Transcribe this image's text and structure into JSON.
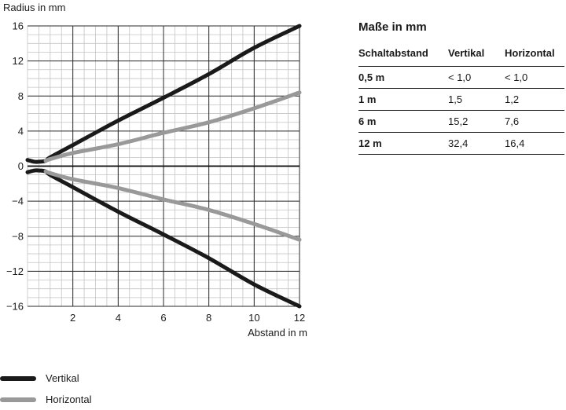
{
  "chart_data": {
    "type": "line",
    "ylabel": "Radius in mm",
    "xlabel": "Abstand in m",
    "xlim": [
      0,
      12
    ],
    "ylim": [
      -16,
      16
    ],
    "x_ticks": [
      2,
      4,
      6,
      8,
      10,
      12
    ],
    "y_ticks": [
      16,
      12,
      8,
      4,
      0,
      -4,
      -8,
      -12,
      -16
    ],
    "y_tick_labels": [
      "16",
      "12",
      "8",
      "4",
      "0",
      "−4",
      "−8",
      "−12",
      "−16"
    ],
    "grid": true,
    "series": [
      {
        "name": "Vertikal",
        "color": "#1a1a1a",
        "x": [
          0,
          0.3,
          0.5,
          0.8,
          1.0,
          2,
          4,
          6,
          8,
          10,
          12
        ],
        "y": [
          0.7,
          0.5,
          0.5,
          0.6,
          1.0,
          2.4,
          5.2,
          7.8,
          10.5,
          13.5,
          16.0
        ]
      },
      {
        "name": "Vertikal",
        "color": "#1a1a1a",
        "x": [
          0,
          0.3,
          0.5,
          0.8,
          1.0,
          2,
          4,
          6,
          8,
          10,
          12
        ],
        "y": [
          -0.7,
          -0.5,
          -0.5,
          -0.6,
          -1.0,
          -2.4,
          -5.2,
          -7.8,
          -10.5,
          -13.5,
          -16.0
        ]
      },
      {
        "name": "Horizontal",
        "color": "#999999",
        "x": [
          0.8,
          1.0,
          2,
          4,
          6,
          8,
          10,
          12
        ],
        "y": [
          0.6,
          0.8,
          1.5,
          2.5,
          3.8,
          5.0,
          6.6,
          8.4
        ]
      },
      {
        "name": "Horizontal",
        "color": "#999999",
        "x": [
          0.8,
          1.0,
          2,
          4,
          6,
          8,
          10,
          12
        ],
        "y": [
          -0.6,
          -0.8,
          -1.5,
          -2.5,
          -3.8,
          -5.0,
          -6.6,
          -8.4
        ]
      }
    ],
    "legend": [
      {
        "label": "Vertikal",
        "color": "#1a1a1a"
      },
      {
        "label": "Horizontal",
        "color": "#999999"
      }
    ],
    "legend_position": "bottom-left"
  },
  "table": {
    "title": "Maße in mm",
    "headers": [
      "Schaltabstand",
      "Vertikal",
      "Horizontal"
    ],
    "rows": [
      [
        "0,5 m",
        "< 1,0",
        "< 1,0"
      ],
      [
        "1 m",
        "1,5",
        "1,2"
      ],
      [
        "6 m",
        "15,2",
        "7,6"
      ],
      [
        "12 m",
        "32,4",
        "16,4"
      ]
    ]
  }
}
